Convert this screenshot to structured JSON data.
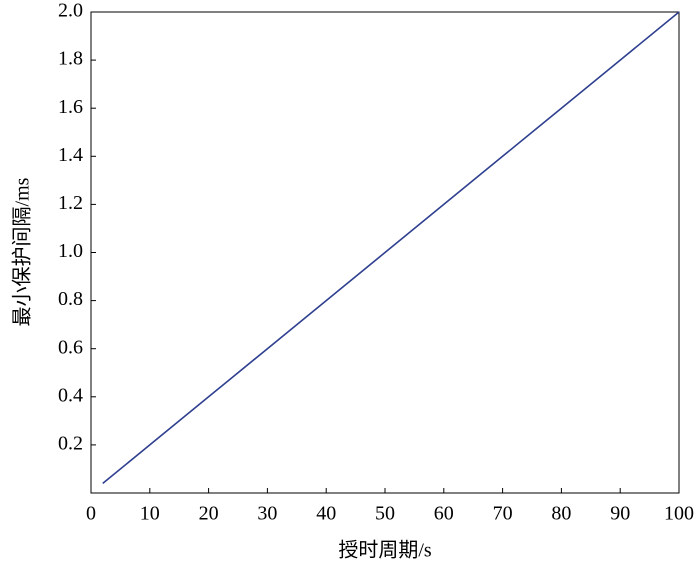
{
  "chart_data": {
    "type": "line",
    "x_label": "授时周期/s",
    "y_label": "最小保护间隔/ms",
    "x": [
      2,
      10,
      20,
      30,
      40,
      50,
      60,
      70,
      80,
      90,
      100
    ],
    "series": [
      {
        "color": "#2e3f8f",
        "values": [
          0.04,
          0.2,
          0.4,
          0.6,
          0.8,
          1.0,
          1.2,
          1.4,
          1.6,
          1.8,
          2.0
        ]
      }
    ],
    "xlim": [
      0,
      100
    ],
    "xticks": [
      0,
      10,
      20,
      30,
      40,
      50,
      60,
      70,
      80,
      90,
      100
    ],
    "ylim": [
      0,
      2
    ],
    "yticks": [
      0.2,
      0.4,
      0.6,
      0.8,
      {
        "value": 1,
        "label": "1.0"
      },
      1.2,
      1.4,
      1.6,
      1.8,
      {
        "value": 2,
        "label": "2.0"
      }
    ]
  }
}
